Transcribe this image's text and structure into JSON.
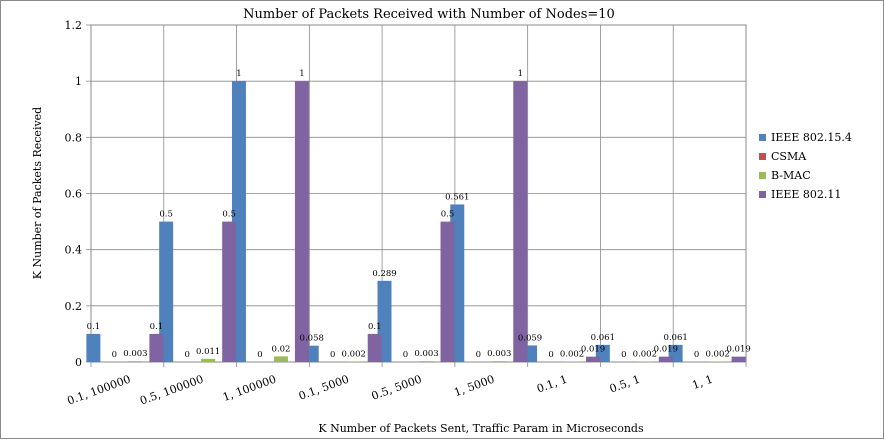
{
  "chart_data": {
    "type": "bar",
    "title": "Number of Packets Received with Number of Nodes=10",
    "xlabel": "K Number of Packets Sent, Traffic Param in Microseconds",
    "ylabel": "K Number of Packets Received",
    "ylim": [
      0,
      1.2
    ],
    "yticks": [
      "0",
      "0.2",
      "0.4",
      "0.6",
      "0.8",
      "1",
      "1.2"
    ],
    "grid": true,
    "legend_position": "right",
    "categories": [
      "0.1, 100000",
      "0.5, 100000",
      "1, 100000",
      "0.1, 5000",
      "0.5, 5000",
      "1, 5000",
      "0.1, 1",
      "0.5, 1",
      "1, 1"
    ],
    "series": [
      {
        "name": "IEEE 802.15.4",
        "color": "#4f81bd",
        "values": [
          0.1,
          0.5,
          1,
          0.058,
          0.289,
          0.561,
          0.059,
          0.061,
          0.061
        ],
        "labels": [
          "0.1",
          "0.5",
          "1",
          "0.058",
          "0.289",
          "0.561",
          "0.059",
          "0.061",
          "0.061"
        ]
      },
      {
        "name": "CSMA",
        "color": "#c0504d",
        "values": [
          0,
          0,
          0,
          0,
          0,
          0,
          0,
          0,
          0
        ],
        "labels": [
          "0",
          "0",
          "0",
          "0",
          "0",
          "0",
          "0",
          "0",
          "0"
        ]
      },
      {
        "name": "B-MAC",
        "color": "#9bbb59",
        "values": [
          0.003,
          0.011,
          0.02,
          0.002,
          0.003,
          0.003,
          0.002,
          0.002,
          0.002
        ],
        "labels": [
          "0.003",
          "0.011",
          "0.02",
          "0.002",
          "0.003",
          "0.003",
          "0.002",
          "0.002",
          "0.002"
        ]
      },
      {
        "name": "IEEE 802.11",
        "color": "#8064a2",
        "values": [
          0.1,
          0.5,
          1,
          0.1,
          0.5,
          1,
          0.019,
          0.019,
          0.019
        ],
        "labels": [
          "0.1",
          "0.5",
          "1",
          "0.1",
          "0.5",
          "1",
          "0.019",
          "0.019",
          "0.019"
        ]
      }
    ]
  }
}
